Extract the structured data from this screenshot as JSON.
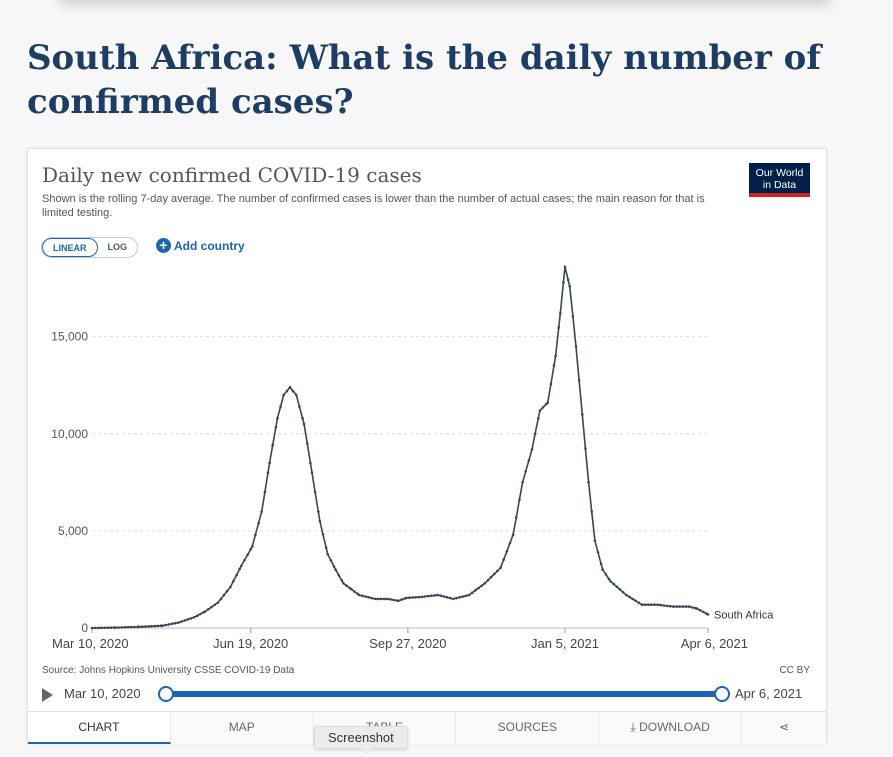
{
  "headline": {
    "before": "South Africa: What is the ",
    "bold": "daily",
    "after": " number of confirmed cases?"
  },
  "card": {
    "title": "Daily new confirmed COVID-19 cases",
    "subtitle": "Shown is the rolling 7-day average. The number of confirmed cases is lower than the number of actual cases; the main reason for that is limited testing.",
    "logo_line1": "Our World",
    "logo_line2": "in Data",
    "scale_linear": "LINEAR",
    "scale_log": "LOG",
    "add_country": "Add country",
    "source": "Source: Johns Hopkins University CSSE COVID-19 Data",
    "license": "CC BY",
    "timeline_start": "Mar 10, 2020",
    "timeline_end": "Apr 6, 2021"
  },
  "tabs": [
    {
      "label": "Chart",
      "active": true
    },
    {
      "label": "Map"
    },
    {
      "label": "Table"
    },
    {
      "label": "Sources"
    },
    {
      "label": "Download"
    }
  ],
  "tooltip": "Screenshot",
  "colors": {
    "line": "#3a4556",
    "accent": "#1c65b0",
    "logo_bg": "#002147",
    "logo_bar": "#ce261e"
  },
  "chart_data": {
    "type": "line",
    "title": "Daily new confirmed COVID-19 cases",
    "x_ticks": [
      "Mar 10, 2020",
      "Jun 19, 2020",
      "Sep 27, 2020",
      "Jan 5, 2021",
      "Apr 6, 2021"
    ],
    "x_tick_days": [
      0,
      101,
      201,
      301,
      392
    ],
    "y_ticks": [
      0,
      5000,
      10000,
      15000
    ],
    "y_tick_labels": [
      "0",
      "5,000",
      "10,000",
      "15,000"
    ],
    "ylim": [
      0,
      19000
    ],
    "xlim": [
      0,
      392
    ],
    "grid": true,
    "series": [
      {
        "name": "South Africa",
        "points": [
          [
            0,
            0
          ],
          [
            15,
            20
          ],
          [
            30,
            60
          ],
          [
            45,
            120
          ],
          [
            55,
            280
          ],
          [
            65,
            550
          ],
          [
            72,
            850
          ],
          [
            80,
            1300
          ],
          [
            88,
            2100
          ],
          [
            95,
            3200
          ],
          [
            102,
            4200
          ],
          [
            108,
            6000
          ],
          [
            113,
            8500
          ],
          [
            118,
            10800
          ],
          [
            122,
            12000
          ],
          [
            126,
            12400
          ],
          [
            130,
            12000
          ],
          [
            135,
            10500
          ],
          [
            140,
            8000
          ],
          [
            145,
            5500
          ],
          [
            150,
            3800
          ],
          [
            155,
            3000
          ],
          [
            160,
            2300
          ],
          [
            165,
            2000
          ],
          [
            170,
            1700
          ],
          [
            180,
            1500
          ],
          [
            188,
            1500
          ],
          [
            195,
            1400
          ],
          [
            200,
            1550
          ],
          [
            210,
            1600
          ],
          [
            220,
            1700
          ],
          [
            230,
            1500
          ],
          [
            240,
            1700
          ],
          [
            250,
            2300
          ],
          [
            260,
            3100
          ],
          [
            268,
            4800
          ],
          [
            274,
            7500
          ],
          [
            280,
            9200
          ],
          [
            285,
            11200
          ],
          [
            290,
            11600
          ],
          [
            295,
            14000
          ],
          [
            298,
            16200
          ],
          [
            301,
            18600
          ],
          [
            304,
            17600
          ],
          [
            308,
            14500
          ],
          [
            312,
            11000
          ],
          [
            316,
            7500
          ],
          [
            320,
            4500
          ],
          [
            325,
            3000
          ],
          [
            330,
            2400
          ],
          [
            340,
            1700
          ],
          [
            350,
            1200
          ],
          [
            360,
            1200
          ],
          [
            370,
            1100
          ],
          [
            380,
            1100
          ],
          [
            385,
            1000
          ],
          [
            392,
            700
          ]
        ]
      }
    ]
  }
}
